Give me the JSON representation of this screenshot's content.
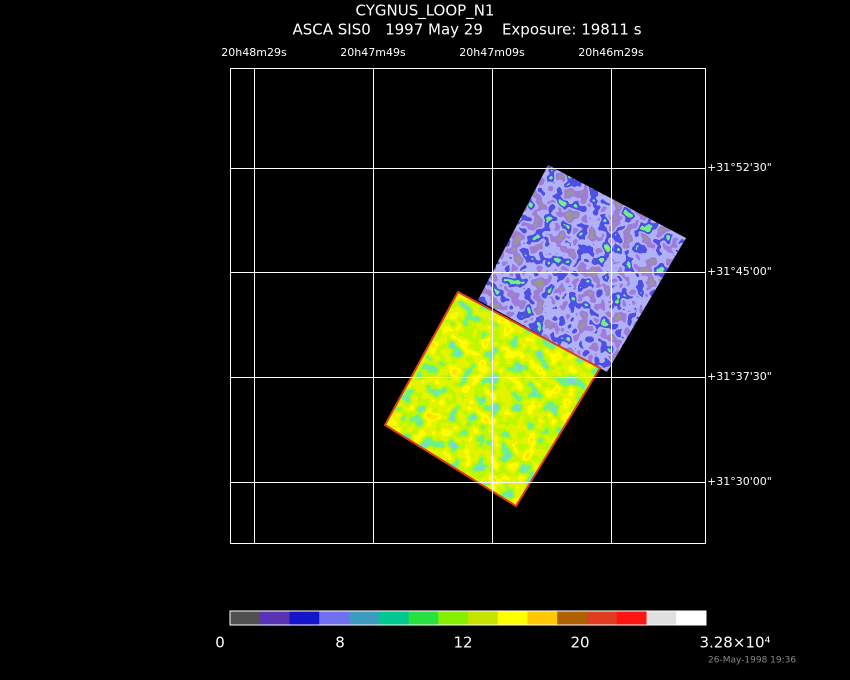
{
  "header": {
    "title": "CYGNUS_LOOP_N1",
    "subtitle": "ASCA SIS0   1997 May 29    Exposure: 19811 s"
  },
  "ra_labels": [
    "20h48m29s",
    "20h47m49s",
    "20h47m09s",
    "20h46m29s"
  ],
  "dec_labels": [
    "+31°52'30\"",
    "+31°45'00\"",
    "+31°37'30\"",
    "+31°30'00\""
  ],
  "colorbar": {
    "colors": [
      "#505050",
      "#5a32b4",
      "#1414c8",
      "#7070f0",
      "#3c9cc0",
      "#00c890",
      "#28e040",
      "#84f000",
      "#c4e400",
      "#ffff00",
      "#ffc800",
      "#b06000",
      "#e03c20",
      "#ff1414",
      "#e0e0e0",
      "#ffffff"
    ],
    "labels": [
      "0",
      "8",
      "12",
      "20",
      "3.28×10⁴"
    ]
  },
  "footer": "26-May-1998 19:36"
}
